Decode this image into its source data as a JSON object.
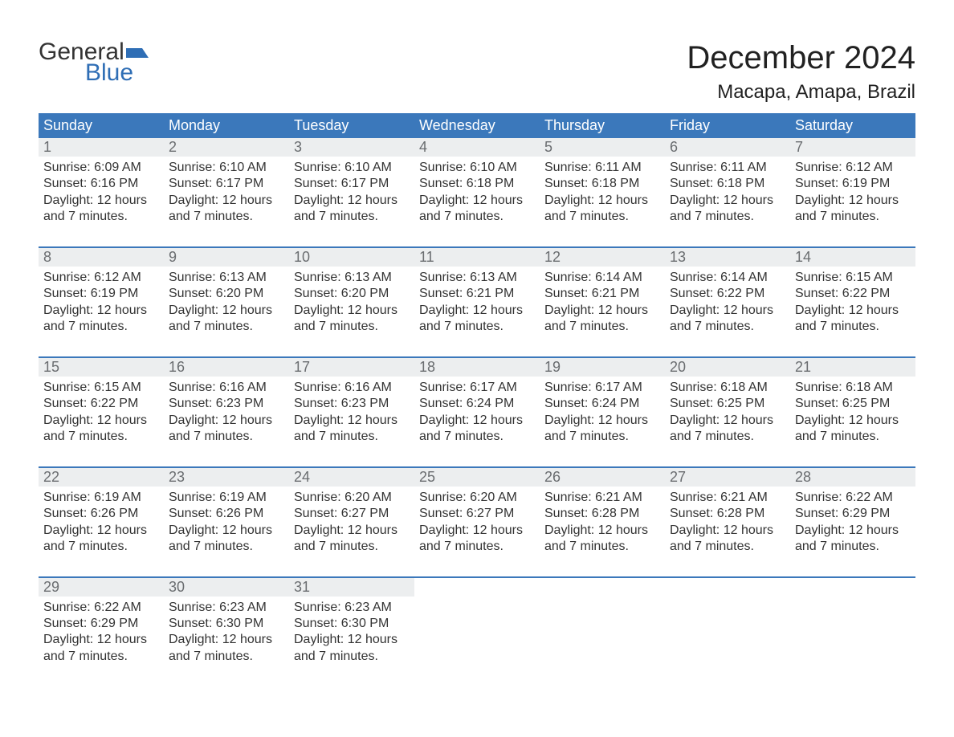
{
  "brand": {
    "word1": "General",
    "word2": "Blue",
    "flag_color": "#2f6eb5",
    "text_color": "#333333"
  },
  "title": "December 2024",
  "location": "Macapa, Amapa, Brazil",
  "colors": {
    "header_bg": "#3b78bb",
    "header_text": "#ffffff",
    "daynum_bg": "#eceeef",
    "daynum_text": "#6a6d70",
    "body_text": "#333333",
    "rule": "#3b78bb",
    "page_bg": "#ffffff"
  },
  "font": {
    "family": "Arial",
    "title_size_pt": 30,
    "location_size_pt": 18,
    "header_size_pt": 14,
    "body_size_pt": 12
  },
  "day_names": [
    "Sunday",
    "Monday",
    "Tuesday",
    "Wednesday",
    "Thursday",
    "Friday",
    "Saturday"
  ],
  "labels": {
    "sunrise": "Sunrise:",
    "sunset": "Sunset:",
    "daylight": "Daylight:"
  },
  "daylight_text": "12 hours and 7 minutes.",
  "weeks": [
    [
      {
        "n": "1",
        "sunrise": "6:09 AM",
        "sunset": "6:16 PM"
      },
      {
        "n": "2",
        "sunrise": "6:10 AM",
        "sunset": "6:17 PM"
      },
      {
        "n": "3",
        "sunrise": "6:10 AM",
        "sunset": "6:17 PM"
      },
      {
        "n": "4",
        "sunrise": "6:10 AM",
        "sunset": "6:18 PM"
      },
      {
        "n": "5",
        "sunrise": "6:11 AM",
        "sunset": "6:18 PM"
      },
      {
        "n": "6",
        "sunrise": "6:11 AM",
        "sunset": "6:18 PM"
      },
      {
        "n": "7",
        "sunrise": "6:12 AM",
        "sunset": "6:19 PM"
      }
    ],
    [
      {
        "n": "8",
        "sunrise": "6:12 AM",
        "sunset": "6:19 PM"
      },
      {
        "n": "9",
        "sunrise": "6:13 AM",
        "sunset": "6:20 PM"
      },
      {
        "n": "10",
        "sunrise": "6:13 AM",
        "sunset": "6:20 PM"
      },
      {
        "n": "11",
        "sunrise": "6:13 AM",
        "sunset": "6:21 PM"
      },
      {
        "n": "12",
        "sunrise": "6:14 AM",
        "sunset": "6:21 PM"
      },
      {
        "n": "13",
        "sunrise": "6:14 AM",
        "sunset": "6:22 PM"
      },
      {
        "n": "14",
        "sunrise": "6:15 AM",
        "sunset": "6:22 PM"
      }
    ],
    [
      {
        "n": "15",
        "sunrise": "6:15 AM",
        "sunset": "6:22 PM"
      },
      {
        "n": "16",
        "sunrise": "6:16 AM",
        "sunset": "6:23 PM"
      },
      {
        "n": "17",
        "sunrise": "6:16 AM",
        "sunset": "6:23 PM"
      },
      {
        "n": "18",
        "sunrise": "6:17 AM",
        "sunset": "6:24 PM"
      },
      {
        "n": "19",
        "sunrise": "6:17 AM",
        "sunset": "6:24 PM"
      },
      {
        "n": "20",
        "sunrise": "6:18 AM",
        "sunset": "6:25 PM"
      },
      {
        "n": "21",
        "sunrise": "6:18 AM",
        "sunset": "6:25 PM"
      }
    ],
    [
      {
        "n": "22",
        "sunrise": "6:19 AM",
        "sunset": "6:26 PM"
      },
      {
        "n": "23",
        "sunrise": "6:19 AM",
        "sunset": "6:26 PM"
      },
      {
        "n": "24",
        "sunrise": "6:20 AM",
        "sunset": "6:27 PM"
      },
      {
        "n": "25",
        "sunrise": "6:20 AM",
        "sunset": "6:27 PM"
      },
      {
        "n": "26",
        "sunrise": "6:21 AM",
        "sunset": "6:28 PM"
      },
      {
        "n": "27",
        "sunrise": "6:21 AM",
        "sunset": "6:28 PM"
      },
      {
        "n": "28",
        "sunrise": "6:22 AM",
        "sunset": "6:29 PM"
      }
    ],
    [
      {
        "n": "29",
        "sunrise": "6:22 AM",
        "sunset": "6:29 PM"
      },
      {
        "n": "30",
        "sunrise": "6:23 AM",
        "sunset": "6:30 PM"
      },
      {
        "n": "31",
        "sunrise": "6:23 AM",
        "sunset": "6:30 PM"
      },
      null,
      null,
      null,
      null
    ]
  ]
}
